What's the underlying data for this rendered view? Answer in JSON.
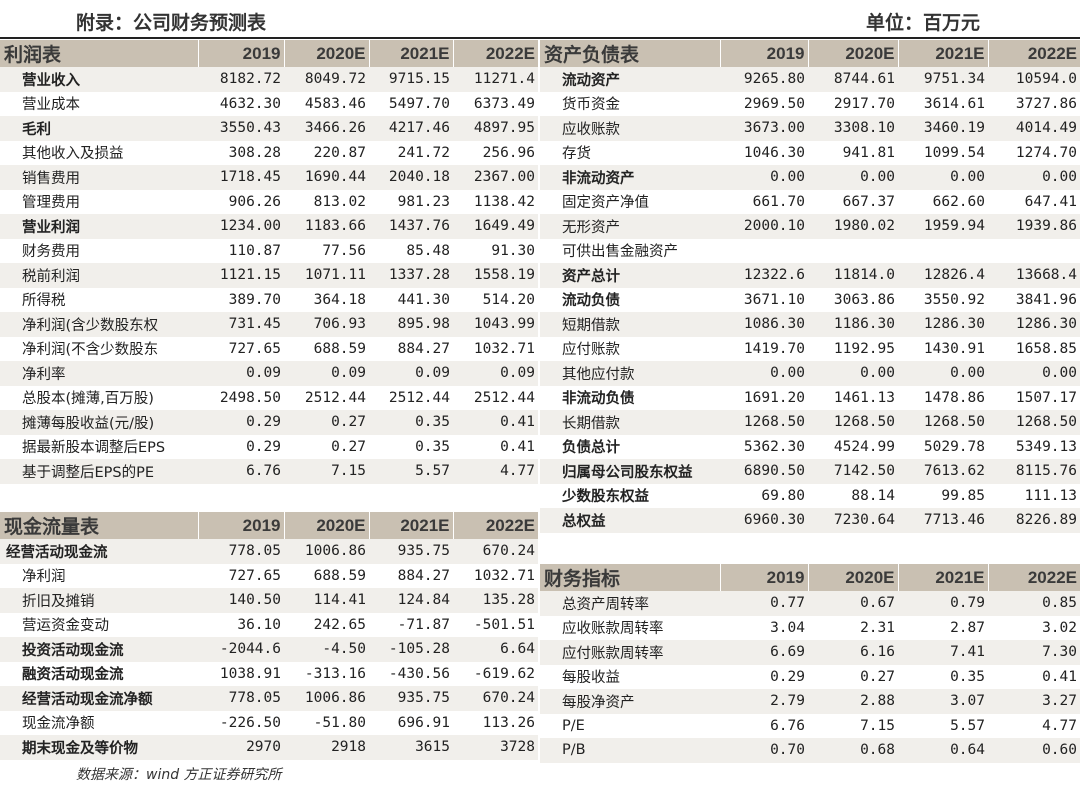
{
  "header": {
    "title": "附录：公司财务预测表",
    "unit": "单位：百万元"
  },
  "years": [
    "2019",
    "2020E",
    "2021E",
    "2022E"
  ],
  "income": {
    "title": "利润表",
    "rows": [
      {
        "label": "营业收入",
        "v": [
          "8182.72",
          "8049.72",
          "9715.15",
          "11271.4"
        ],
        "bold": true
      },
      {
        "label": "营业成本",
        "v": [
          "4632.30",
          "4583.46",
          "5497.70",
          "6373.49"
        ]
      },
      {
        "label": "毛利",
        "v": [
          "3550.43",
          "3466.26",
          "4217.46",
          "4897.95"
        ],
        "bold": true
      },
      {
        "label": "其他收入及损益",
        "v": [
          "308.28",
          "220.87",
          "241.72",
          "256.96"
        ]
      },
      {
        "label": "销售费用",
        "v": [
          "1718.45",
          "1690.44",
          "2040.18",
          "2367.00"
        ]
      },
      {
        "label": "管理费用",
        "v": [
          "906.26",
          "813.02",
          "981.23",
          "1138.42"
        ]
      },
      {
        "label": "营业利润",
        "v": [
          "1234.00",
          "1183.66",
          "1437.76",
          "1649.49"
        ],
        "bold": true
      },
      {
        "label": "财务费用",
        "v": [
          "110.87",
          "77.56",
          "85.48",
          "91.30"
        ]
      },
      {
        "label": "税前利润",
        "v": [
          "1121.15",
          "1071.11",
          "1337.28",
          "1558.19"
        ]
      },
      {
        "label": "所得税",
        "v": [
          "389.70",
          "364.18",
          "441.30",
          "514.20"
        ]
      },
      {
        "label": "净利润(含少数股东权",
        "v": [
          "731.45",
          "706.93",
          "895.98",
          "1043.99"
        ]
      },
      {
        "label": "净利润(不含少数股东",
        "v": [
          "727.65",
          "688.59",
          "884.27",
          "1032.71"
        ]
      },
      {
        "label": "净利率",
        "v": [
          "0.09",
          "0.09",
          "0.09",
          "0.09"
        ]
      },
      {
        "label": "总股本(摊薄,百万股)",
        "v": [
          "2498.50",
          "2512.44",
          "2512.44",
          "2512.44"
        ]
      },
      {
        "label": "摊薄每股收益(元/股)",
        "v": [
          "0.29",
          "0.27",
          "0.35",
          "0.41"
        ]
      },
      {
        "label": "据最新股本调整后EPS",
        "v": [
          "0.29",
          "0.27",
          "0.35",
          "0.41"
        ]
      },
      {
        "label": "基于调整后EPS的PE",
        "v": [
          "6.76",
          "7.15",
          "5.57",
          "4.77"
        ]
      }
    ]
  },
  "cashflow": {
    "title": "现金流量表",
    "rows": [
      {
        "label": "经营活动现金流",
        "v": [
          "778.05",
          "1006.86",
          "935.75",
          "670.24"
        ],
        "bold": true,
        "top": true
      },
      {
        "label": "净利润",
        "v": [
          "727.65",
          "688.59",
          "884.27",
          "1032.71"
        ]
      },
      {
        "label": "折旧及摊销",
        "v": [
          "140.50",
          "114.41",
          "124.84",
          "135.28"
        ]
      },
      {
        "label": "营运资金变动",
        "v": [
          "36.10",
          "242.65",
          "-71.87",
          "-501.51"
        ]
      },
      {
        "label": "投资活动现金流",
        "v": [
          "-2044.6",
          "-4.50",
          "-105.28",
          "6.64"
        ],
        "bold": true
      },
      {
        "label": "融资活动现金流",
        "v": [
          "1038.91",
          "-313.16",
          "-430.56",
          "-619.62"
        ],
        "bold": true
      },
      {
        "label": "经营活动现金流净额",
        "v": [
          "778.05",
          "1006.86",
          "935.75",
          "670.24"
        ],
        "bold": true
      },
      {
        "label": "现金流净额",
        "v": [
          "-226.50",
          "-51.80",
          "696.91",
          "113.26"
        ]
      },
      {
        "label": "期末现金及等价物",
        "v": [
          "2970",
          "2918",
          "3615",
          "3728"
        ],
        "bold": true
      }
    ]
  },
  "balance": {
    "title": "资产负债表",
    "rows": [
      {
        "label": "流动资产",
        "v": [
          "9265.80",
          "8744.61",
          "9751.34",
          "10594.0"
        ],
        "bold": true
      },
      {
        "label": "货币资金",
        "v": [
          "2969.50",
          "2917.70",
          "3614.61",
          "3727.86"
        ]
      },
      {
        "label": "应收账款",
        "v": [
          "3673.00",
          "3308.10",
          "3460.19",
          "4014.49"
        ]
      },
      {
        "label": "存货",
        "v": [
          "1046.30",
          "941.81",
          "1099.54",
          "1274.70"
        ]
      },
      {
        "label": "非流动资产",
        "v": [
          "0.00",
          "0.00",
          "0.00",
          "0.00"
        ],
        "bold": true
      },
      {
        "label": "固定资产净值",
        "v": [
          "661.70",
          "667.37",
          "662.60",
          "647.41"
        ]
      },
      {
        "label": "无形资产",
        "v": [
          "2000.10",
          "1980.02",
          "1959.94",
          "1939.86"
        ]
      },
      {
        "label": "可供出售金融资产",
        "v": [
          "",
          "",
          "",
          ""
        ]
      },
      {
        "label": "资产总计",
        "v": [
          "12322.6",
          "11814.0",
          "12826.4",
          "13668.4"
        ],
        "bold": true
      },
      {
        "label": "流动负债",
        "v": [
          "3671.10",
          "3063.86",
          "3550.92",
          "3841.96"
        ],
        "bold": true
      },
      {
        "label": "短期借款",
        "v": [
          "1086.30",
          "1186.30",
          "1286.30",
          "1286.30"
        ]
      },
      {
        "label": "应付账款",
        "v": [
          "1419.70",
          "1192.95",
          "1430.91",
          "1658.85"
        ]
      },
      {
        "label": "其他应付款",
        "v": [
          "0.00",
          "0.00",
          "0.00",
          "0.00"
        ]
      },
      {
        "label": "非流动负债",
        "v": [
          "1691.20",
          "1461.13",
          "1478.86",
          "1507.17"
        ],
        "bold": true
      },
      {
        "label": "长期借款",
        "v": [
          "1268.50",
          "1268.50",
          "1268.50",
          "1268.50"
        ]
      },
      {
        "label": "负债总计",
        "v": [
          "5362.30",
          "4524.99",
          "5029.78",
          "5349.13"
        ],
        "bold": true
      },
      {
        "label": "归属母公司股东权益",
        "v": [
          "6890.50",
          "7142.50",
          "7613.62",
          "8115.76"
        ],
        "bold": true
      },
      {
        "label": "少数股东权益",
        "v": [
          "69.80",
          "88.14",
          "99.85",
          "111.13"
        ],
        "bold": true
      },
      {
        "label": "总权益",
        "v": [
          "6960.30",
          "7230.64",
          "7713.46",
          "8226.89"
        ],
        "bold": true
      }
    ]
  },
  "ratios": {
    "title": "财务指标",
    "rows": [
      {
        "label": "总资产周转率",
        "v": [
          "0.77",
          "0.67",
          "0.79",
          "0.85"
        ]
      },
      {
        "label": "应收账款周转率",
        "v": [
          "3.04",
          "2.31",
          "2.87",
          "3.02"
        ]
      },
      {
        "label": "应付账款周转率",
        "v": [
          "6.69",
          "6.16",
          "7.41",
          "7.30"
        ]
      },
      {
        "label": "每股收益",
        "v": [
          "0.29",
          "0.27",
          "0.35",
          "0.41"
        ]
      },
      {
        "label": "每股净资产",
        "v": [
          "2.79",
          "2.88",
          "3.07",
          "3.27"
        ]
      },
      {
        "label": "P/E",
        "v": [
          "6.76",
          "7.15",
          "5.57",
          "4.77"
        ]
      },
      {
        "label": "P/B",
        "v": [
          "0.70",
          "0.68",
          "0.64",
          "0.60"
        ]
      }
    ]
  },
  "footer": {
    "source": "数据来源：wind 方正证券研究所"
  }
}
